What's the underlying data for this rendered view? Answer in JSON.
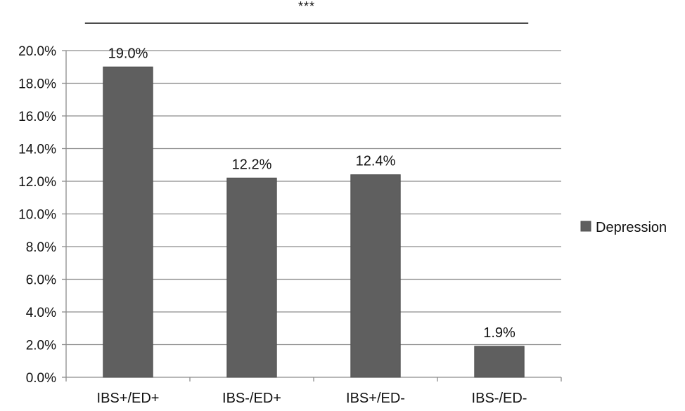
{
  "chart_data": {
    "type": "bar",
    "title": "",
    "xlabel": "",
    "ylabel": "",
    "categories": [
      "IBS+/ED+",
      "IBS-/ED+",
      "IBS+/ED-",
      "IBS-/ED-"
    ],
    "series": [
      {
        "name": "Depression",
        "values": [
          19.0,
          12.2,
          12.4,
          1.9
        ],
        "data_labels": [
          "19.0%",
          "12.2%",
          "12.4%",
          "1.9%"
        ],
        "color": "#5f5f5f"
      }
    ],
    "ylim": [
      0,
      20
    ],
    "y_tick_values": [
      0,
      2,
      4,
      6,
      8,
      10,
      12,
      14,
      16,
      18,
      20
    ],
    "y_ticks": [
      "0.0%",
      "2.0%",
      "4.0%",
      "6.0%",
      "8.0%",
      "10.0%",
      "12.0%",
      "14.0%",
      "16.0%",
      "18.0%",
      "20.0%"
    ],
    "grid": true,
    "legend_position": "right",
    "significance": {
      "label": "***",
      "from_category": "IBS+/ED+",
      "to_category": "IBS-/ED-"
    },
    "colors": {
      "bar": "#5f5f5f",
      "bar_edge": "#4f4f4f",
      "grid": "#8c8c8c",
      "axis": "#8c8c8c",
      "text": "#111111"
    }
  }
}
